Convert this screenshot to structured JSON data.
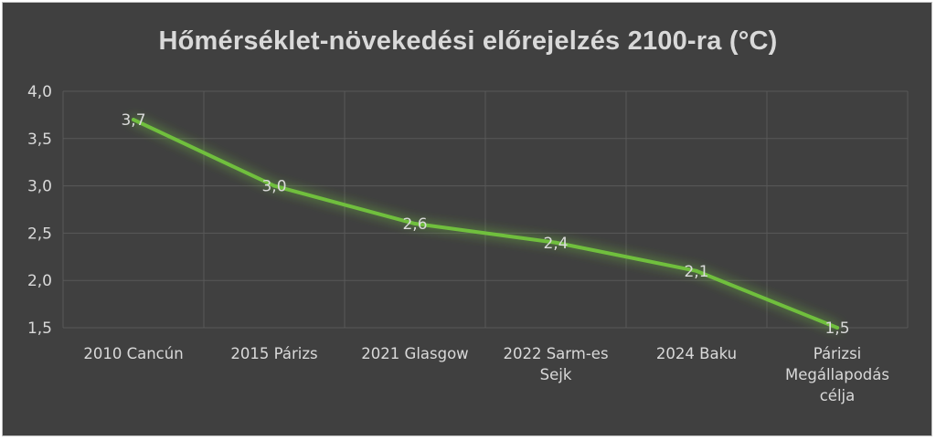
{
  "chart_data": {
    "type": "line",
    "title": "Hőmérséklet-növekedési előrejelzés 2100-ra (°C)",
    "categories": [
      [
        "2010 Cancún"
      ],
      [
        "2015 Párizs"
      ],
      [
        "2021 Glasgow"
      ],
      [
        "2022 Sarm-es",
        "Sejk"
      ],
      [
        "2024 Baku"
      ],
      [
        "Párizsi",
        "Megállapodás",
        "célja"
      ]
    ],
    "values": [
      3.7,
      3.0,
      2.6,
      2.4,
      2.1,
      1.5
    ],
    "data_labels": [
      "3,7",
      "3,0",
      "2,6",
      "2,4",
      "2,1",
      "1,5"
    ],
    "yticks": [
      "4,0",
      "3,5",
      "3,0",
      "2,5",
      "2,0",
      "1,5"
    ],
    "ylim": [
      1.5,
      4.0
    ],
    "grid": true,
    "line_color": "#6fbf3e",
    "background": "#404040"
  }
}
